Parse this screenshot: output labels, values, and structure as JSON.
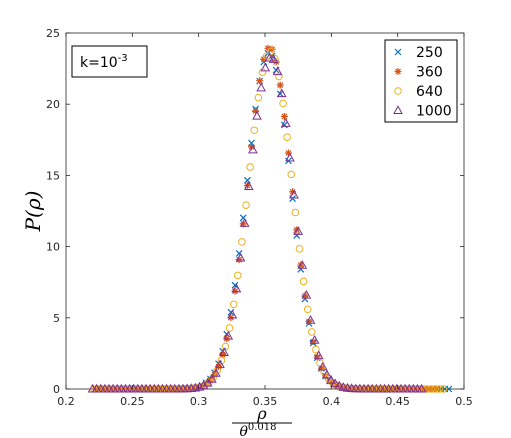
{
  "chart_data": {
    "type": "scatter",
    "ylabel": "P(ρ)",
    "xlabel": {
      "numerator": "ρ",
      "denominator_base": "θ",
      "denominator_exponent": "0.018"
    },
    "annotation": {
      "base": "k=10",
      "exponent": "-3"
    },
    "xlim": [
      0.2,
      0.5
    ],
    "ylim": [
      0,
      25
    ],
    "x_ticks": [
      "0.2",
      "0.25",
      "0.3",
      "0.35",
      "0.4",
      "0.45",
      "0.5"
    ],
    "y_ticks": [
      "0",
      "5",
      "10",
      "15",
      "20",
      "25"
    ],
    "legend_position": "top-right",
    "grid": false,
    "series": [
      {
        "name": "250",
        "marker": "x",
        "color": "#0072BD",
        "peak_x": 0.353,
        "peak_y": 23.6,
        "sigma": 0.0167,
        "x_start": 0.222,
        "x_end": 0.49,
        "step": 0.0031
      },
      {
        "name": "360",
        "marker": "asterisk",
        "color": "#D95319",
        "peak_x": 0.3535,
        "peak_y": 24.0,
        "sigma": 0.0165,
        "x_start": 0.222,
        "x_end": 0.48,
        "step": 0.0031
      },
      {
        "name": "640",
        "marker": "circle",
        "color": "#EDB120",
        "peak_x": 0.354,
        "peak_y": 23.7,
        "sigma": 0.0166,
        "x_start": 0.221,
        "x_end": 0.485,
        "step": 0.0031
      },
      {
        "name": "1000",
        "marker": "triangle",
        "color": "#7E2F8E",
        "peak_x": 0.3545,
        "peak_y": 23.3,
        "sigma": 0.0168,
        "x_start": 0.22,
        "x_end": 0.47,
        "step": 0.0031
      }
    ]
  }
}
